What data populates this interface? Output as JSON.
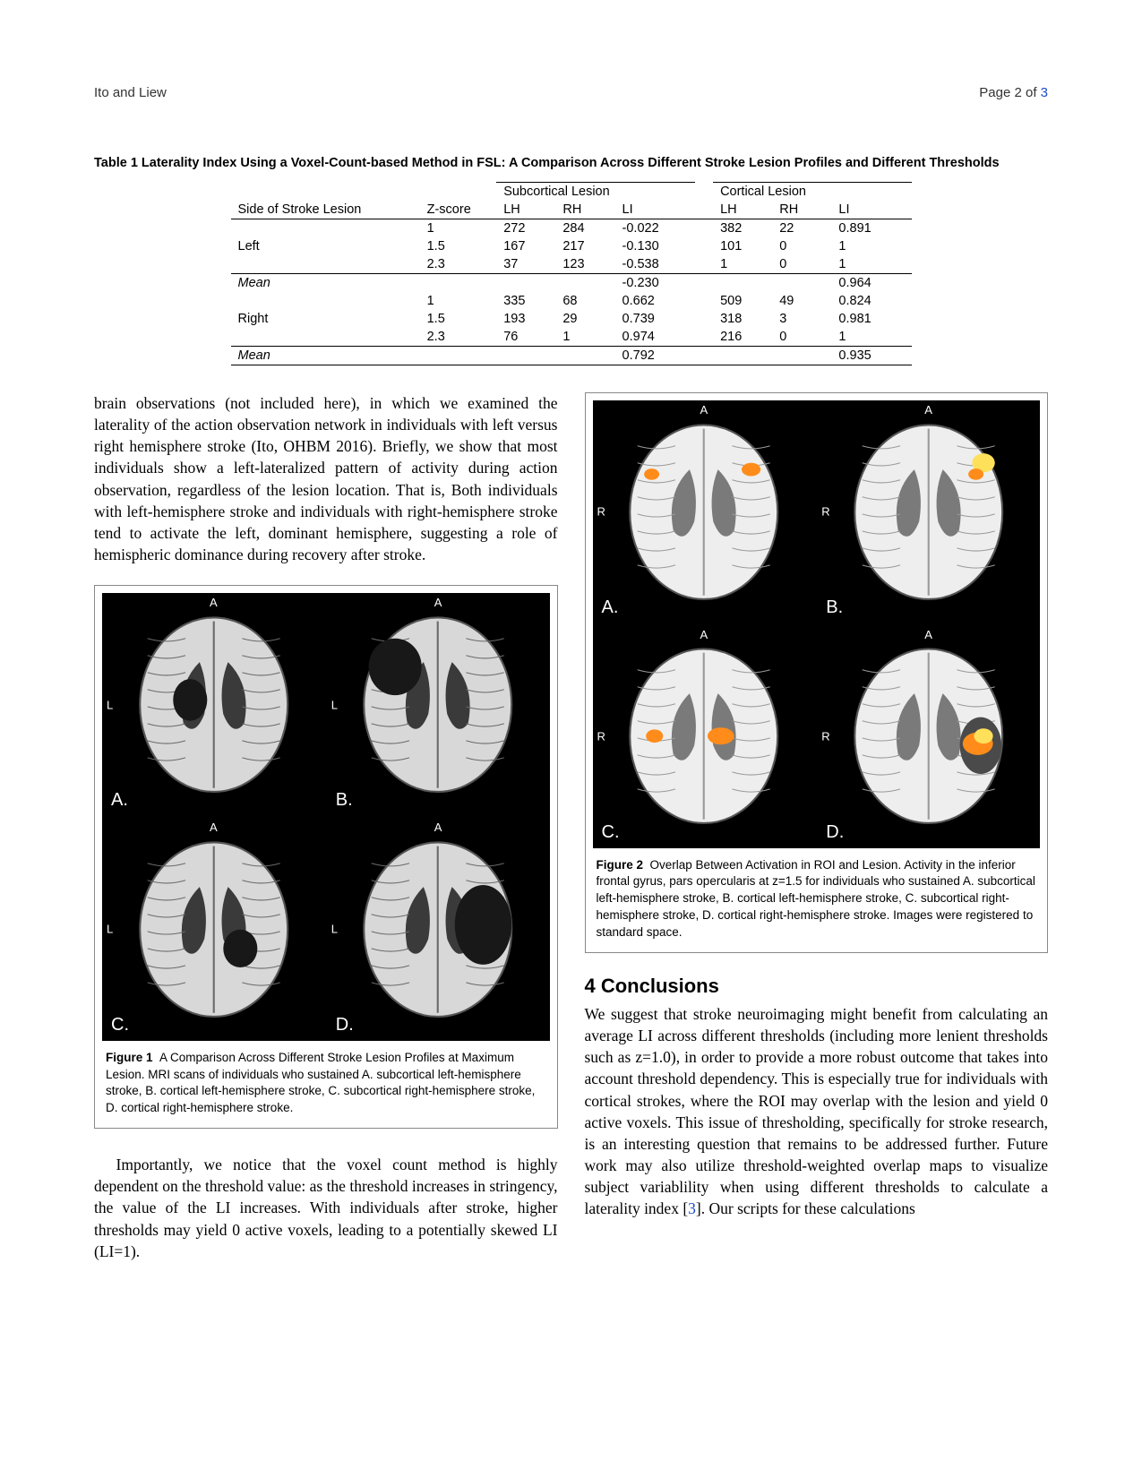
{
  "header": {
    "authors": "Ito and Liew",
    "page_label": "Page 2 of ",
    "page_total": "3"
  },
  "table1": {
    "title": "Table 1   Laterality Index Using a Voxel-Count-based Method in FSL: A Comparison Across Different Stroke Lesion Profiles and Different Thresholds",
    "group_headers": {
      "sub": "Subcortical Lesion",
      "cort": "Cortical Lesion"
    },
    "col_headers": {
      "side": "Side of Stroke Lesion",
      "z": "Z-score",
      "lh": "LH",
      "rh": "RH",
      "li": "LI"
    },
    "blocks": [
      {
        "side": "Left",
        "rows": [
          {
            "z": "1",
            "s_lh": "272",
            "s_rh": "284",
            "s_li": "-0.022",
            "c_lh": "382",
            "c_rh": "22",
            "c_li": "0.891"
          },
          {
            "z": "1.5",
            "s_lh": "167",
            "s_rh": "217",
            "s_li": "-0.130",
            "c_lh": "101",
            "c_rh": "0",
            "c_li": "1"
          },
          {
            "z": "2.3",
            "s_lh": "37",
            "s_rh": "123",
            "s_li": "-0.538",
            "c_lh": "1",
            "c_rh": "0",
            "c_li": "1"
          }
        ],
        "mean": {
          "label": "Mean",
          "s_li": "-0.230",
          "c_li": "0.964"
        }
      },
      {
        "side": "Right",
        "rows": [
          {
            "z": "1",
            "s_lh": "335",
            "s_rh": "68",
            "s_li": "0.662",
            "c_lh": "509",
            "c_rh": "49",
            "c_li": "0.824"
          },
          {
            "z": "1.5",
            "s_lh": "193",
            "s_rh": "29",
            "s_li": "0.739",
            "c_lh": "318",
            "c_rh": "3",
            "c_li": "0.981"
          },
          {
            "z": "2.3",
            "s_lh": "76",
            "s_rh": "1",
            "s_li": "0.974",
            "c_lh": "216",
            "c_rh": "0",
            "c_li": "1"
          }
        ],
        "mean": {
          "label": "Mean",
          "s_li": "0.792",
          "c_li": "0.935"
        }
      }
    ]
  },
  "left_column": {
    "para1": "brain observations (not included here), in which we examined the laterality of the action observation network in individuals with left versus right hemisphere stroke (Ito, OHBM 2016). Briefly, we show that most individuals show a left-lateralized pattern of activity during action observation, regardless of the lesion location. That is, Both individuals with left-hemisphere stroke and individuals with right-hemisphere stroke tend to activate the left, dominant hemisphere, suggesting a role of hemispheric dominance during recovery after stroke.",
    "para2": "Importantly, we notice that the voxel count method is highly dependent on the threshold value: as the threshold increases in stringency, the value of the LI increases. With individuals after stroke, higher thresholds may yield 0 active voxels, leading to a potentially skewed LI (LI=1)."
  },
  "figure1": {
    "label": "Figure 1",
    "caption": "A Comparison Across Different Stroke Lesion Profiles at Maximum Lesion. MRI scans of individuals who sustained A. subcortical left-hemisphere stroke, B. cortical left-hemisphere stroke, C. subcortical right-hemisphere stroke, D. cortical right-hemisphere stroke.",
    "panels": [
      "A.",
      "B.",
      "C.",
      "D."
    ],
    "orientation_top": "A",
    "orientation_left": "L",
    "colors": {
      "bg": "#000000",
      "brain": "#d8d8d8",
      "dark": "#3a3a3a",
      "label": "#ffffff"
    }
  },
  "figure2": {
    "label": "Figure 2",
    "caption": "Overlap Between Activation in ROI and Lesion. Activity in the inferior frontal gyrus, pars opercularis at z=1.5 for individuals who sustained A. subcortical left-hemisphere stroke, B. cortical left-hemisphere stroke, C. subcortical right-hemisphere stroke, D. cortical right-hemisphere stroke. Images were registered to standard space.",
    "panels": [
      "A.",
      "B.",
      "C.",
      "D."
    ],
    "orientation_top": "A",
    "orientation_left": "R",
    "colors": {
      "bg": "#000000",
      "brain": "#eeeeee",
      "gray": "#7a7a7a",
      "activation1": "#ff8c1a",
      "activation2": "#ffe05a",
      "label": "#ffffff"
    }
  },
  "section4": {
    "heading": "4  Conclusions",
    "para_pre": "We suggest that stroke neuroimaging might benefit from calculating an average LI across different thresholds (including more lenient thresholds such as z=1.0), in order to provide a more robust outcome that takes into account threshold dependency. This is especially true for individuals with cortical strokes, where the ROI may overlap with the lesion and yield 0 active voxels. This issue of thresholding, specifically for stroke research, is an interesting question that remains to be addressed further. Future work may also utilize threshold-weighted overlap maps to visualize subject variablility when using different thresholds to calculate a laterality index [",
    "cite": "3",
    "para_post": "]. Our scripts for these calculations"
  }
}
